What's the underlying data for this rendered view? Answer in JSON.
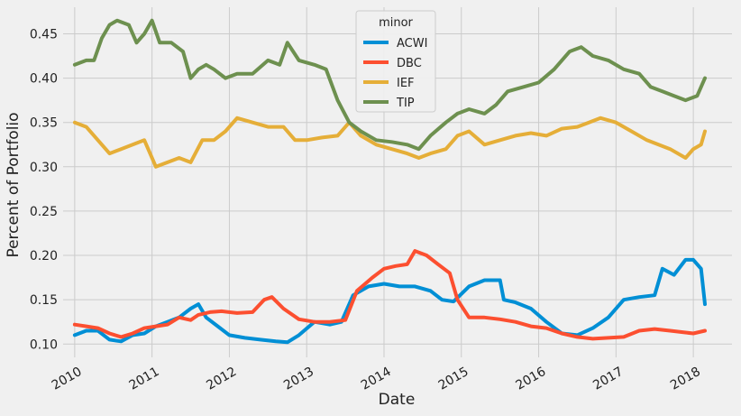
{
  "chart_data": {
    "type": "line",
    "xlabel": "Date",
    "ylabel": "Percent of Portfolio",
    "xlim": [
      2009.85,
      2018.5
    ],
    "ylim": [
      0.085,
      0.48
    ],
    "grid": true,
    "legend_title": "minor",
    "legend_placement": "top-center",
    "x_ticks": [
      2010,
      2011,
      2012,
      2013,
      2014,
      2015,
      2016,
      2017,
      2018
    ],
    "x_tick_labels": [
      "2010",
      "2011",
      "2012",
      "2013",
      "2014",
      "2015",
      "2016",
      "2017",
      "2018"
    ],
    "y_ticks": [
      0.1,
      0.15,
      0.2,
      0.25,
      0.3,
      0.35,
      0.4,
      0.45
    ],
    "y_tick_labels": [
      "0.10",
      "0.15",
      "0.20",
      "0.25",
      "0.30",
      "0.35",
      "0.40",
      "0.45"
    ],
    "series": [
      {
        "name": "ACWI",
        "color": "#008fd5",
        "x": [
          2010.0,
          2010.15,
          2010.3,
          2010.45,
          2010.6,
          2010.75,
          2010.9,
          2011.05,
          2011.2,
          2011.35,
          2011.5,
          2011.6,
          2011.7,
          2011.85,
          2012.0,
          2012.2,
          2012.4,
          2012.6,
          2012.75,
          2012.9,
          2013.1,
          2013.3,
          2013.45,
          2013.6,
          2013.8,
          2014.0,
          2014.2,
          2014.4,
          2014.6,
          2014.75,
          2014.9,
          2015.1,
          2015.3,
          2015.5,
          2015.55,
          2015.7,
          2015.9,
          2016.1,
          2016.3,
          2016.5,
          2016.7,
          2016.9,
          2017.1,
          2017.3,
          2017.5,
          2017.6,
          2017.75,
          2017.9,
          2018.0,
          2018.1,
          2018.15
        ],
        "y": [
          0.11,
          0.115,
          0.115,
          0.105,
          0.103,
          0.11,
          0.112,
          0.12,
          0.125,
          0.13,
          0.14,
          0.145,
          0.13,
          0.12,
          0.11,
          0.107,
          0.105,
          0.103,
          0.102,
          0.11,
          0.125,
          0.122,
          0.125,
          0.155,
          0.165,
          0.168,
          0.165,
          0.165,
          0.16,
          0.15,
          0.148,
          0.165,
          0.172,
          0.172,
          0.15,
          0.147,
          0.14,
          0.125,
          0.112,
          0.11,
          0.118,
          0.13,
          0.15,
          0.153,
          0.155,
          0.185,
          0.178,
          0.195,
          0.195,
          0.185,
          0.145
        ]
      },
      {
        "name": "DBC",
        "color": "#fc4f30",
        "x": [
          2010.0,
          2010.15,
          2010.3,
          2010.45,
          2010.6,
          2010.75,
          2010.9,
          2011.05,
          2011.2,
          2011.35,
          2011.5,
          2011.6,
          2011.75,
          2011.9,
          2012.1,
          2012.3,
          2012.45,
          2012.55,
          2012.7,
          2012.9,
          2013.1,
          2013.3,
          2013.5,
          2013.65,
          2013.85,
          2014.0,
          2014.15,
          2014.3,
          2014.4,
          2014.55,
          2014.7,
          2014.85,
          2014.95,
          2015.1,
          2015.3,
          2015.5,
          2015.7,
          2015.9,
          2016.1,
          2016.3,
          2016.5,
          2016.7,
          2016.9,
          2017.1,
          2017.3,
          2017.5,
          2017.7,
          2017.9,
          2018.0,
          2018.15
        ],
        "y": [
          0.122,
          0.12,
          0.118,
          0.112,
          0.108,
          0.112,
          0.118,
          0.12,
          0.122,
          0.13,
          0.127,
          0.133,
          0.136,
          0.137,
          0.135,
          0.136,
          0.15,
          0.153,
          0.14,
          0.128,
          0.125,
          0.125,
          0.127,
          0.16,
          0.175,
          0.185,
          0.188,
          0.19,
          0.205,
          0.2,
          0.19,
          0.18,
          0.15,
          0.13,
          0.13,
          0.128,
          0.125,
          0.12,
          0.118,
          0.112,
          0.108,
          0.106,
          0.107,
          0.108,
          0.115,
          0.117,
          0.115,
          0.113,
          0.112,
          0.115
        ]
      },
      {
        "name": "IEF",
        "color": "#e5ae38",
        "x": [
          2010.0,
          2010.15,
          2010.3,
          2010.45,
          2010.6,
          2010.75,
          2010.9,
          2011.05,
          2011.2,
          2011.35,
          2011.5,
          2011.65,
          2011.8,
          2011.95,
          2012.1,
          2012.3,
          2012.5,
          2012.7,
          2012.85,
          2013.0,
          2013.2,
          2013.4,
          2013.55,
          2013.7,
          2013.9,
          2014.1,
          2014.3,
          2014.45,
          2014.6,
          2014.8,
          2014.95,
          2015.1,
          2015.3,
          2015.5,
          2015.7,
          2015.9,
          2016.1,
          2016.3,
          2016.5,
          2016.65,
          2016.8,
          2017.0,
          2017.2,
          2017.4,
          2017.55,
          2017.7,
          2017.9,
          2018.0,
          2018.1,
          2018.15
        ],
        "y": [
          0.35,
          0.345,
          0.33,
          0.315,
          0.32,
          0.325,
          0.33,
          0.3,
          0.305,
          0.31,
          0.305,
          0.33,
          0.33,
          0.34,
          0.355,
          0.35,
          0.345,
          0.345,
          0.33,
          0.33,
          0.333,
          0.335,
          0.35,
          0.335,
          0.325,
          0.32,
          0.315,
          0.31,
          0.315,
          0.32,
          0.335,
          0.34,
          0.325,
          0.33,
          0.335,
          0.338,
          0.335,
          0.343,
          0.345,
          0.35,
          0.355,
          0.35,
          0.34,
          0.33,
          0.325,
          0.32,
          0.31,
          0.32,
          0.325,
          0.34
        ]
      },
      {
        "name": "TIP",
        "color": "#6d904f",
        "x": [
          2010.0,
          2010.15,
          2010.25,
          2010.35,
          2010.45,
          2010.55,
          2010.7,
          2010.8,
          2010.9,
          2011.0,
          2011.1,
          2011.25,
          2011.4,
          2011.5,
          2011.6,
          2011.7,
          2011.8,
          2011.95,
          2012.1,
          2012.3,
          2012.5,
          2012.65,
          2012.75,
          2012.9,
          2013.1,
          2013.25,
          2013.4,
          2013.55,
          2013.7,
          2013.9,
          2014.1,
          2014.3,
          2014.45,
          2014.6,
          2014.8,
          2014.95,
          2015.1,
          2015.3,
          2015.45,
          2015.6,
          2015.8,
          2016.0,
          2016.2,
          2016.4,
          2016.55,
          2016.7,
          2016.9,
          2017.1,
          2017.3,
          2017.45,
          2017.6,
          2017.75,
          2017.9,
          2018.05,
          2018.15
        ],
        "y": [
          0.415,
          0.42,
          0.42,
          0.445,
          0.46,
          0.465,
          0.46,
          0.44,
          0.45,
          0.465,
          0.44,
          0.44,
          0.43,
          0.4,
          0.41,
          0.415,
          0.41,
          0.4,
          0.405,
          0.405,
          0.42,
          0.415,
          0.44,
          0.42,
          0.415,
          0.41,
          0.375,
          0.35,
          0.34,
          0.33,
          0.328,
          0.325,
          0.32,
          0.335,
          0.35,
          0.36,
          0.365,
          0.36,
          0.37,
          0.385,
          0.39,
          0.395,
          0.41,
          0.43,
          0.435,
          0.425,
          0.42,
          0.41,
          0.405,
          0.39,
          0.385,
          0.38,
          0.375,
          0.38,
          0.4
        ]
      }
    ]
  }
}
